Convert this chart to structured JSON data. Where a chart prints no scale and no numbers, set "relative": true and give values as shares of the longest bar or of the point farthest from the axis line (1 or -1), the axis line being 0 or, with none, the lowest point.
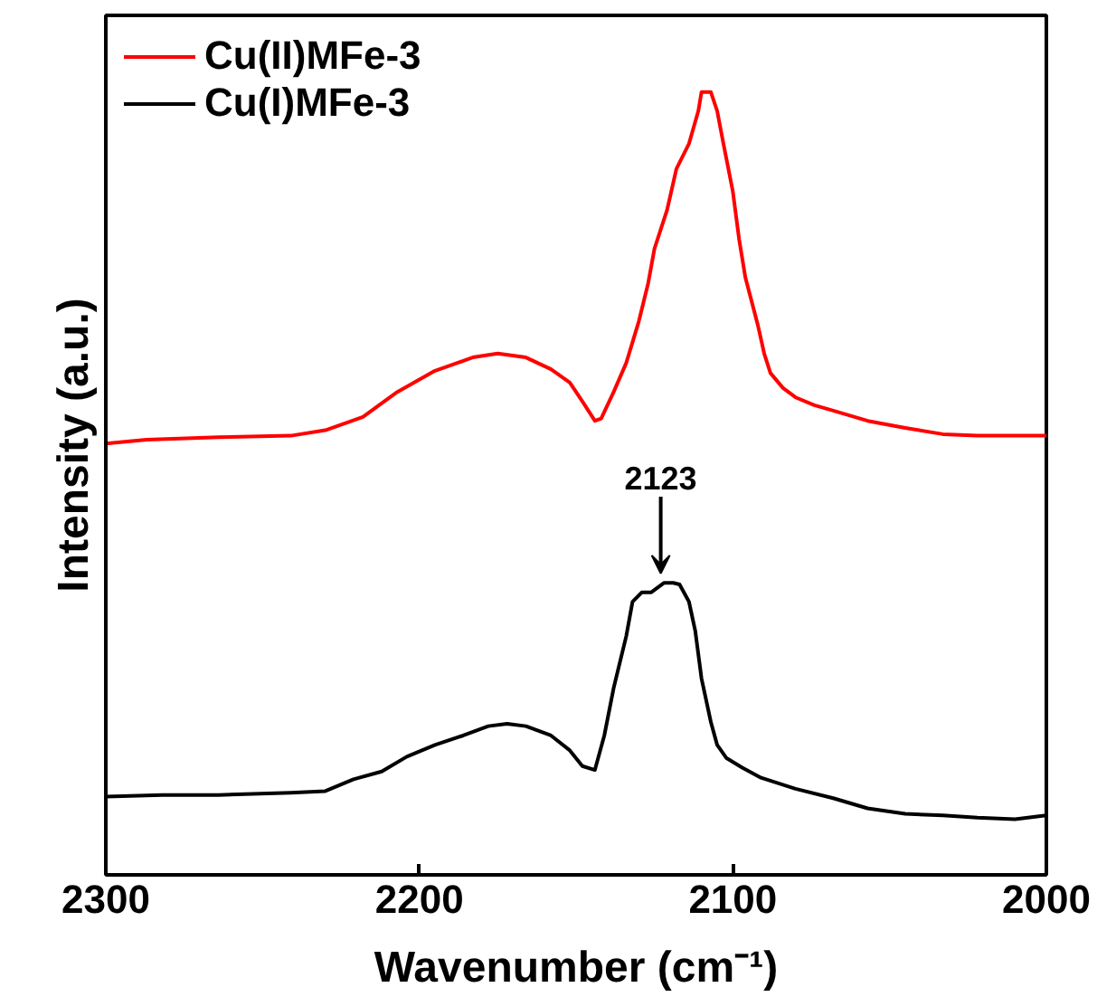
{
  "chart_data": {
    "type": "line",
    "relative": true,
    "xlabel": "Wavenumber (cm⁻¹)",
    "ylabel": "Intensity (a.u.)",
    "xlim": [
      2300,
      2000
    ],
    "xticks": [
      2300,
      2200,
      2100,
      2000
    ],
    "tick_labels": "x",
    "grid": false,
    "legend": "top left",
    "marker": "none",
    "line_style": "solid",
    "x": [
      2300,
      2287,
      2264,
      2241,
      2230,
      2218,
      2207,
      2195,
      2183,
      2175,
      2166,
      2158,
      2152,
      2148,
      2144,
      2142,
      2138,
      2134,
      2130,
      2127,
      2125,
      2121,
      2118,
      2114,
      2111,
      2110,
      2107,
      2105,
      2103,
      2100,
      2098,
      2096,
      2092,
      2090,
      2088,
      2084,
      2080,
      2074,
      2068,
      2057,
      2045,
      2033,
      2022,
      2010,
      2000
    ],
    "series": [
      {
        "name": "Cu(II)MFe-3",
        "color": "#ff0000",
        "values": [
          0.551,
          0.556,
          0.559,
          0.561,
          0.568,
          0.585,
          0.617,
          0.644,
          0.661,
          0.666,
          0.661,
          0.646,
          0.629,
          0.605,
          0.58,
          0.583,
          0.617,
          0.654,
          0.707,
          0.756,
          0.8,
          0.849,
          0.902,
          0.934,
          0.976,
          1.0,
          1.0,
          0.976,
          0.934,
          0.873,
          0.812,
          0.763,
          0.702,
          0.666,
          0.641,
          0.622,
          0.61,
          0.6,
          0.593,
          0.58,
          0.571,
          0.563,
          0.561,
          0.561,
          0.561
        ]
      },
      {
        "name": "Cu(I)MFe-3",
        "color": "#000000",
        "x": [
          2300,
          2282,
          2264,
          2241,
          2230,
          2221,
          2212,
          2204,
          2195,
          2186,
          2178,
          2172,
          2166,
          2158,
          2152,
          2148,
          2144,
          2141,
          2138,
          2134,
          2132,
          2129,
          2126,
          2122,
          2119,
          2117,
          2114,
          2112,
          2110,
          2107,
          2105,
          2102,
          2097,
          2091,
          2080,
          2068,
          2057,
          2045,
          2033,
          2022,
          2010,
          2000
        ],
        "values": [
          0.1,
          0.102,
          0.102,
          0.105,
          0.107,
          0.122,
          0.132,
          0.151,
          0.166,
          0.178,
          0.19,
          0.193,
          0.19,
          0.178,
          0.159,
          0.139,
          0.134,
          0.178,
          0.239,
          0.305,
          0.349,
          0.361,
          0.361,
          0.373,
          0.373,
          0.371,
          0.349,
          0.312,
          0.251,
          0.195,
          0.166,
          0.149,
          0.137,
          0.124,
          0.11,
          0.098,
          0.085,
          0.078,
          0.076,
          0.073,
          0.071,
          0.076
        ]
      }
    ],
    "annotations": [
      {
        "text": "2123",
        "x": 2123,
        "y": 0.373
      }
    ]
  }
}
